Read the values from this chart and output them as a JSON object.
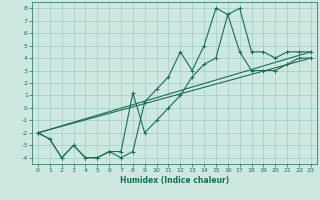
{
  "title": "",
  "xlabel": "Humidex (Indice chaleur)",
  "xlim": [
    -0.5,
    23.5
  ],
  "ylim": [
    -4.5,
    8.5
  ],
  "bg_color": "#cce8e0",
  "line_color": "#1a6b5a",
  "grid_color": "#a8ccc8",
  "xticks": [
    0,
    1,
    2,
    3,
    4,
    5,
    6,
    7,
    8,
    9,
    10,
    11,
    12,
    13,
    14,
    15,
    16,
    17,
    18,
    19,
    20,
    21,
    22,
    23
  ],
  "yticks": [
    -4,
    -3,
    -2,
    -1,
    0,
    1,
    2,
    3,
    4,
    5,
    6,
    7,
    8
  ],
  "line1_x": [
    0,
    1,
    2,
    3,
    4,
    5,
    6,
    7,
    8,
    9,
    10,
    11,
    12,
    13,
    14,
    15,
    16,
    17,
    18,
    19,
    20,
    21,
    22,
    23
  ],
  "line1_y": [
    -2,
    -2.5,
    -4,
    -3,
    -4,
    -4,
    -3.5,
    -4,
    -3.5,
    0.5,
    1.5,
    2.5,
    4.5,
    3,
    5,
    8,
    7.5,
    8,
    4.5,
    4.5,
    4,
    4.5,
    4.5,
    4.5
  ],
  "line2_x": [
    0,
    1,
    2,
    3,
    4,
    5,
    6,
    7,
    8,
    9,
    10,
    11,
    12,
    13,
    14,
    15,
    16,
    17,
    18,
    19,
    20,
    21,
    22,
    23
  ],
  "line2_y": [
    -2,
    -2.5,
    -4,
    -3,
    -4,
    -4,
    -3.5,
    -3.5,
    1.2,
    -2,
    -1,
    0,
    1,
    2.5,
    3.5,
    4,
    7.5,
    4.5,
    3,
    3,
    3,
    3.5,
    4,
    4
  ],
  "line3_x": [
    0,
    23
  ],
  "line3_y": [
    -2,
    4.5
  ],
  "line4_x": [
    0,
    23
  ],
  "line4_y": [
    -2,
    4.0
  ]
}
